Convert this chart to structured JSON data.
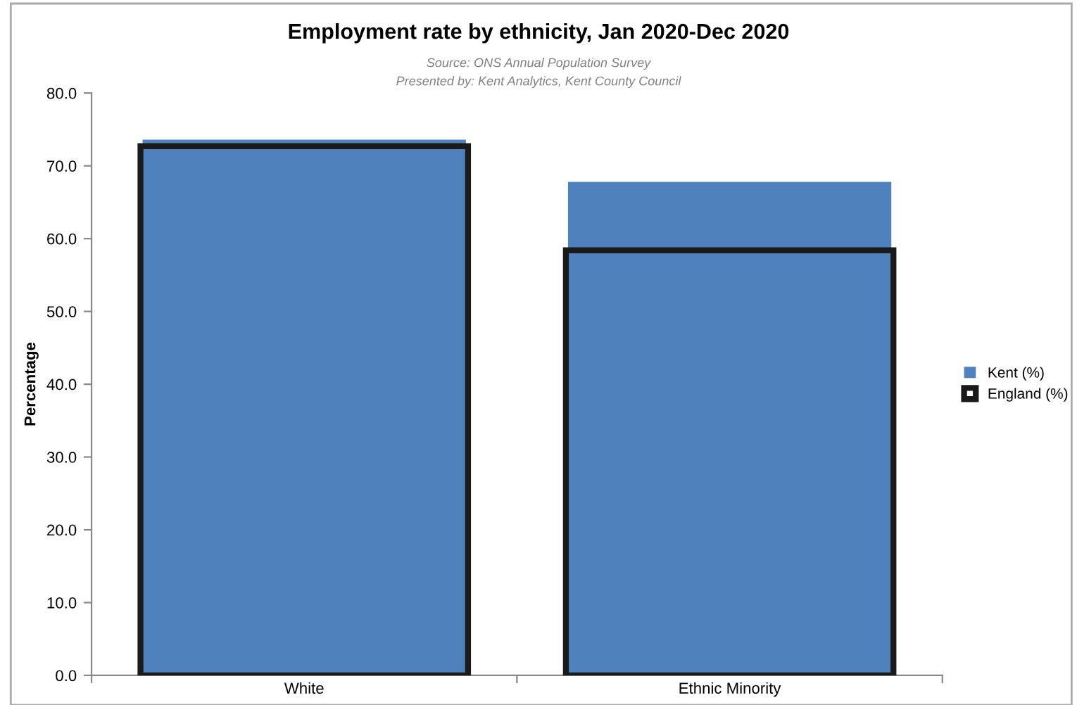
{
  "chart_data": {
    "type": "bar",
    "title": "Employment rate by ethnicity, Jan 2020-Dec 2020",
    "annotations": [
      "Source: ONS Annual Population Survey",
      "Presented by: Kent Analytics, Kent County Council"
    ],
    "ylabel": "Percentage",
    "categories": [
      "White",
      "Ethnic Minority"
    ],
    "series": [
      {
        "name": "Kent (%)",
        "color": "#4f81bd",
        "values": [
          73.6,
          67.8
        ]
      },
      {
        "name": "England (%)",
        "color": "#1a1a1a",
        "values": [
          72.7,
          58.4
        ]
      }
    ],
    "ylim": [
      0,
      80
    ],
    "yticks": [
      {
        "value": 0,
        "label": "0.0"
      },
      {
        "value": 10,
        "label": "10.0"
      },
      {
        "value": 20,
        "label": "20.0"
      },
      {
        "value": 30,
        "label": "30.0"
      },
      {
        "value": 40,
        "label": "40.0"
      },
      {
        "value": 50,
        "label": "50.0"
      },
      {
        "value": 60,
        "label": "60.0"
      },
      {
        "value": 70,
        "label": "70.0"
      },
      {
        "value": 80,
        "label": "80.0"
      }
    ],
    "grid": false,
    "legend": "right"
  }
}
